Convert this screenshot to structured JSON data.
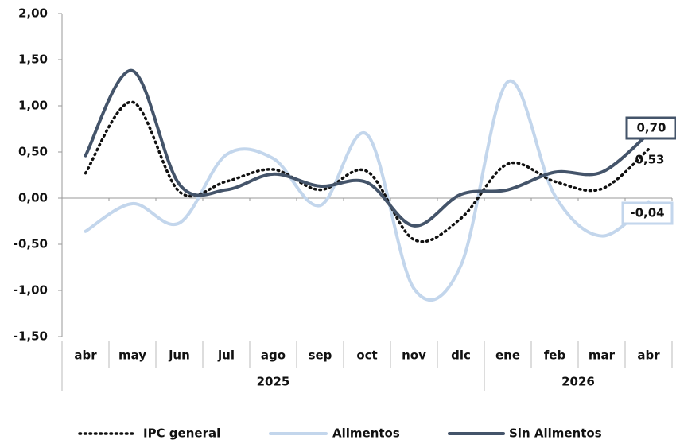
{
  "chart_data": {
    "type": "line",
    "categories": [
      "abr",
      "may",
      "jun",
      "jul",
      "ago",
      "sep",
      "oct",
      "nov",
      "dic",
      "ene",
      "feb",
      "mar",
      "abr"
    ],
    "groups": [
      {
        "label": "2025",
        "count": 9
      },
      {
        "label": "2026",
        "count": 4
      }
    ],
    "series": [
      {
        "name": "IPC general",
        "color": "#111111",
        "dash": true,
        "values": [
          0.27,
          1.04,
          0.07,
          0.18,
          0.31,
          0.09,
          0.29,
          -0.45,
          -0.22,
          0.37,
          0.18,
          0.1,
          0.53
        ],
        "value_labels": [
          null,
          null,
          null,
          null,
          null,
          null,
          null,
          null,
          null,
          null,
          null,
          null,
          "0,53"
        ]
      },
      {
        "name": "Alimentos",
        "color": "#c3d6ec",
        "values": [
          -0.36,
          -0.06,
          -0.27,
          0.47,
          0.43,
          -0.08,
          0.69,
          -0.98,
          -0.73,
          1.26,
          0.03,
          -0.41,
          -0.04
        ],
        "value_labels": [
          null,
          null,
          null,
          null,
          null,
          null,
          null,
          null,
          null,
          null,
          null,
          null,
          "-0,04"
        ]
      },
      {
        "name": "Sin Alimentos",
        "color": "#44546a",
        "values": [
          0.46,
          1.38,
          0.15,
          0.09,
          0.26,
          0.13,
          0.17,
          -0.3,
          0.04,
          0.09,
          0.28,
          0.28,
          0.7
        ],
        "value_labels": [
          null,
          null,
          null,
          null,
          null,
          null,
          null,
          null,
          null,
          null,
          null,
          null,
          "0,70"
        ]
      }
    ],
    "ylim": [
      -1.5,
      2
    ],
    "yticks": [
      {
        "value": -1.5,
        "label": "-1,50"
      },
      {
        "value": -1,
        "label": "-1,00"
      },
      {
        "value": -0.5,
        "label": "-0,50"
      },
      {
        "value": 0,
        "label": "0,00"
      },
      {
        "value": 0.5,
        "label": "0,50"
      },
      {
        "value": 1,
        "label": "1,00"
      },
      {
        "value": 1.5,
        "label": "1,50"
      },
      {
        "value": 2,
        "label": "2,00"
      }
    ]
  }
}
